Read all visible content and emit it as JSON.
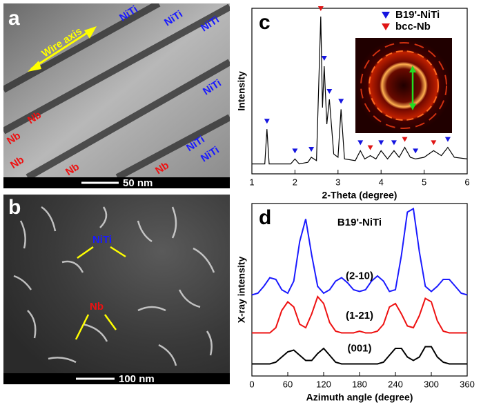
{
  "images": [
    {
      "panel_label": "a",
      "arrow_label": "Wire axis",
      "labels_niti": [
        "NiTi",
        "NiTi",
        "NiTi",
        "NiTi",
        "NiTi",
        "NiTi"
      ],
      "labels_nb": [
        "Nb",
        "Nb",
        "Nb",
        "Nb",
        "Nb"
      ],
      "scale_bar": "50 nm"
    },
    {
      "panel_label": "b",
      "labels": [
        "NiTi",
        "Nb"
      ],
      "scale_bar": "100 nm"
    }
  ],
  "chart_data": [
    {
      "type": "line",
      "panel_label": "c",
      "x_label": "2-Theta (degree)",
      "y_label": "Intensity",
      "color": "#000000",
      "x": [
        1,
        1.3,
        1.35,
        1.4,
        1.9,
        2.0,
        2.1,
        2.3,
        2.38,
        2.5,
        2.6,
        2.64,
        2.68,
        2.74,
        2.8,
        2.9,
        3.0,
        3.07,
        3.15,
        3.4,
        3.52,
        3.62,
        3.75,
        3.88,
        4.0,
        4.15,
        4.3,
        4.42,
        4.55,
        4.68,
        4.8,
        5.0,
        5.22,
        5.4,
        5.55,
        5.7,
        6
      ],
      "values": [
        6,
        6,
        27,
        6,
        6,
        9,
        6,
        7,
        10,
        8,
        95,
        40,
        65,
        30,
        45,
        12,
        10,
        39,
        9,
        8,
        14,
        9,
        11,
        9,
        14,
        9,
        14,
        10,
        16,
        10,
        9,
        10,
        14,
        11,
        16,
        10,
        9
      ],
      "markers": [
        {
          "name": "B19'-NiTi",
          "color": "#1515e0",
          "x": [
            1.35,
            2.0,
            2.38,
            2.68,
            2.8,
            3.07,
            3.52,
            4.0,
            4.3,
            4.8,
            5.55
          ],
          "values": [
            27,
            9,
            10,
            65,
            45,
            39,
            14,
            14,
            14,
            9,
            16
          ]
        },
        {
          "name": "bcc-Nb",
          "color": "#e01515",
          "x": [
            2.6,
            3.75,
            4.55,
            5.22
          ],
          "values": [
            95,
            11,
            16,
            14
          ]
        }
      ],
      "legend": "top-right",
      "xlim": [
        1,
        6
      ],
      "xticks": [
        1,
        2,
        3,
        4,
        5,
        6
      ],
      "ylim": [
        0,
        100
      ]
    },
    {
      "type": "line",
      "panel_label": "d",
      "x_label": "Azimuth angle (degree)",
      "y_label": "X-ray intensity",
      "annotation": "B19'-NiTi",
      "x": [
        0,
        10,
        20,
        30,
        40,
        50,
        60,
        70,
        80,
        90,
        100,
        110,
        120,
        130,
        140,
        150,
        160,
        170,
        180,
        190,
        200,
        210,
        220,
        230,
        240,
        250,
        260,
        270,
        280,
        290,
        300,
        310,
        320,
        330,
        340,
        350,
        360
      ],
      "series": [
        {
          "name": "(2-10)",
          "color": "#1a1aff",
          "values": [
            47,
            48,
            52,
            57,
            56,
            50,
            48,
            55,
            78,
            91,
            70,
            52,
            48,
            50,
            55,
            57,
            54,
            50,
            49,
            50,
            55,
            58,
            55,
            49,
            50,
            70,
            95,
            97,
            72,
            52,
            49,
            52,
            56,
            56,
            52,
            48,
            47
          ]
        },
        {
          "name": "(1-21)",
          "color": "#ee1111",
          "values": [
            25,
            25,
            25,
            25,
            28,
            38,
            43,
            40,
            30,
            28,
            36,
            46,
            42,
            31,
            26,
            25,
            25,
            25,
            26,
            25,
            25,
            26,
            30,
            40,
            42,
            36,
            29,
            28,
            35,
            45,
            43,
            32,
            26,
            25,
            25,
            25,
            25
          ]
        },
        {
          "name": "(001)",
          "color": "#000000",
          "values": [
            7,
            7,
            7,
            7,
            8,
            11,
            14,
            15,
            12,
            9,
            9,
            13,
            16,
            12,
            8,
            7,
            7,
            7,
            7,
            7,
            7,
            7,
            8,
            12,
            16,
            16,
            11,
            9,
            11,
            17,
            17,
            11,
            8,
            7,
            7,
            7,
            7
          ]
        }
      ],
      "xlim": [
        0,
        360
      ],
      "xticks": [
        0,
        60,
        120,
        180,
        240,
        300,
        360
      ],
      "ylim": [
        0,
        100
      ]
    }
  ]
}
